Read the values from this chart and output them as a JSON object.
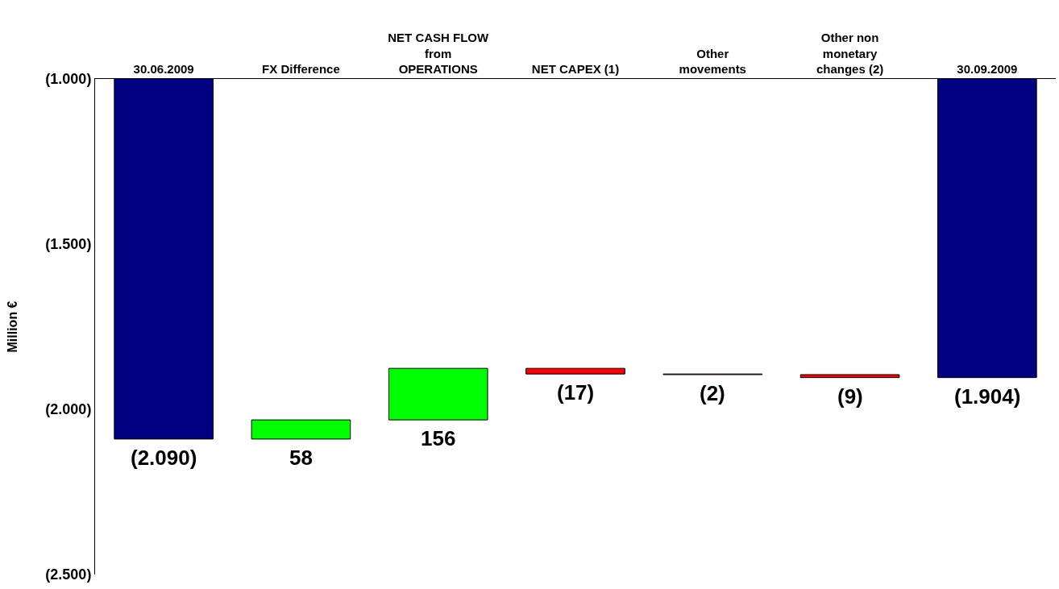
{
  "chart_data": {
    "type": "bar",
    "ylabel": "Million €",
    "categories": [
      "30.06.2009",
      "FX Difference",
      "NET CASH FLOW from OPERATIONS",
      "NET CAPEX (1)",
      "Other movements",
      "Other non monetary changes (2)",
      "30.09.2009"
    ],
    "values": [
      -2090,
      58,
      156,
      -17,
      -2,
      -9,
      -1904
    ],
    "base": [
      null,
      -2090,
      -2032,
      -1876,
      -1893,
      -1895,
      null
    ],
    "colors": [
      "#000080",
      "#00ff00",
      "#00ff00",
      "#ff0000",
      "#ff0000",
      "#ff0000",
      "#000080"
    ],
    "value_labels": [
      "(2.090)",
      "58",
      "156",
      "(17)",
      "(2)",
      "(9)",
      "(1.904)"
    ],
    "ylim": [
      -2500,
      -1000
    ],
    "yticks": [
      {
        "value": -1000,
        "label": "(1.000)"
      },
      {
        "value": -1500,
        "label": "(1.500)"
      },
      {
        "value": -2000,
        "label": "(2.000)"
      },
      {
        "value": -2500,
        "label": "(2.500)"
      }
    ],
    "grid": false
  }
}
